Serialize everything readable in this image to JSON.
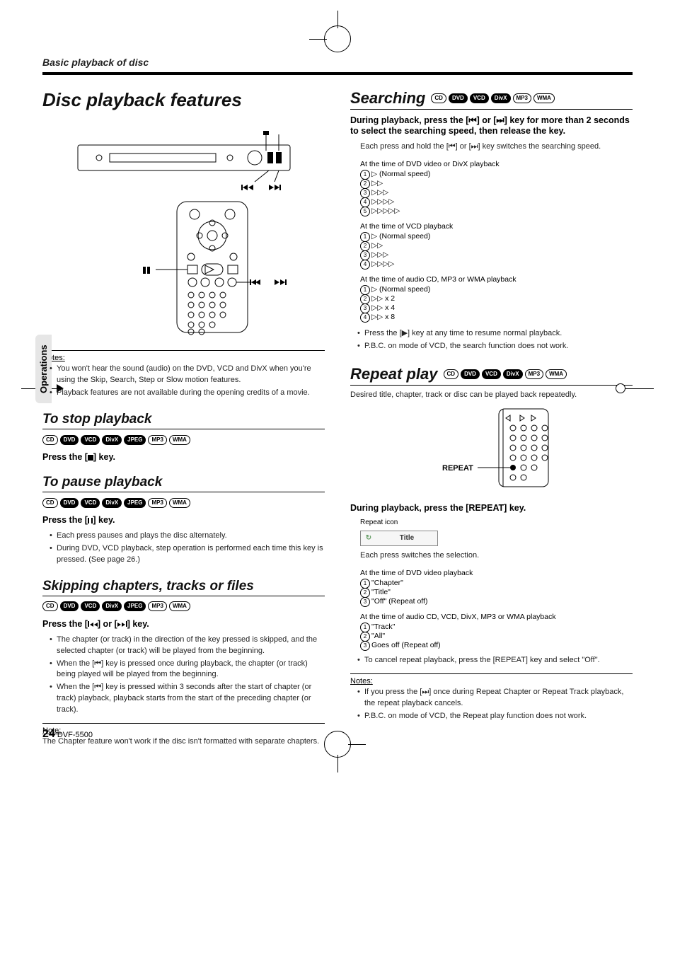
{
  "header": {
    "breadcrumb": "Basic playback of disc"
  },
  "sidetab": "Operations",
  "footer": {
    "page": "24",
    "model": "DVF-5500"
  },
  "badges": {
    "all7": [
      "CD",
      "DVD",
      "VCD",
      "DivX",
      "JPEG",
      "MP3",
      "WMA"
    ],
    "search6": [
      "CD",
      "DVD",
      "VCD",
      "DivX",
      "MP3",
      "WMA"
    ],
    "fill": {
      "CD": false,
      "DVD": true,
      "VCD": true,
      "DivX": true,
      "JPEG": true,
      "MP3": false,
      "WMA": false
    }
  },
  "left": {
    "title": "Disc playback features",
    "illus_labels": {
      "skip_prev": "⏮",
      "skip_next": "⏭",
      "pause": "❚❚"
    },
    "notes_h": "Notes:",
    "notes": [
      "You won't hear the sound (audio) on the DVD, VCD and DivX when you're using the Skip, Search, Step or Slow motion features.",
      "Playback features are not available during the opening credits of a movie."
    ],
    "stop": {
      "title": "To stop playback",
      "instr": "Press the [g] key."
    },
    "pause": {
      "title": "To pause playback",
      "instr": "Press the [❚❚] key.",
      "bullets": [
        "Each press pauses and plays the disc alternately.",
        "During DVD, VCD playback, step operation is performed each time this key is pressed. (See page 26.)"
      ]
    },
    "skip": {
      "title": "Skipping chapters, tracks or files",
      "instr": "Press the [⏮] or [⏭] key.",
      "bullets": [
        "The chapter (or track) in the direction of the key pressed is skipped, and the selected chapter (or track) will be played from the beginning.",
        "When the [⏮] key is pressed once during playback, the chapter (or track) being played will be played from the beginning.",
        "When the [⏮] key is pressed within 3 seconds after the start of chapter (or track) playback, playback starts from the start of the preceding chapter (or track)."
      ],
      "note_h": "Note:",
      "note": "The Chapter feature won't work if the disc isn't formatted with separate chapters."
    }
  },
  "right": {
    "search": {
      "title": "Searching",
      "instr": "During playback, press the [⏮] or [⏭] key for more than 2 seconds to select the searching speed, then release the key.",
      "lead": "Each press and hold the [⏮] or [⏭] key switches the searching speed.",
      "blocks": [
        {
          "caption": "At the time of DVD video or DivX playback",
          "items": [
            "▷ (Normal speed)",
            "▷▷",
            "▷▷▷",
            "▷▷▷▷",
            "▷▷▷▷▷"
          ]
        },
        {
          "caption": "At the time of VCD playback",
          "items": [
            "▷ (Normal speed)",
            "▷▷",
            "▷▷▷",
            "▷▷▷▷"
          ]
        },
        {
          "caption": "At the time of audio CD, MP3 or WMA playback",
          "items": [
            "▷ (Normal speed)",
            "▷▷ x 2",
            "▷▷ x 4",
            "▷▷ x 8"
          ]
        }
      ],
      "tail": [
        "Press the [▶] key at any time to resume normal playback.",
        "P.B.C. on mode of VCD, the search function does not work."
      ]
    },
    "repeat": {
      "title": "Repeat play",
      "lead": "Desired title, chapter, track or disc can be played back repeatedly.",
      "remote_label": "REPEAT",
      "instr": "During playback, press the [REPEAT] key.",
      "icon_caption": "Repeat icon",
      "icon_label": "Title",
      "after_icon": "Each press switches the selection.",
      "blocks": [
        {
          "caption": "At the time of DVD video playback",
          "items": [
            "\"Chapter\"",
            "\"Title\"",
            "\"Off\" (Repeat off)"
          ]
        },
        {
          "caption": "At the time of audio CD, VCD, DivX, MP3 or WMA playback",
          "items": [
            "\"Track\"",
            "\"All\"",
            "Goes off (Repeat off)"
          ]
        }
      ],
      "tail": [
        "To cancel repeat playback, press the [REPEAT] key and select \"Off\"."
      ],
      "notes_h": "Notes:",
      "notes": [
        "If you press the [⏭] once during Repeat Chapter or Repeat Track playback, the repeat playback cancels.",
        "P.B.C. on mode of VCD, the Repeat play function does not work."
      ]
    }
  },
  "colors": {
    "text": "#222222",
    "rule": "#000000",
    "sidetab_bg": "#e6e6e6",
    "icon_green": "#6aa06a"
  }
}
